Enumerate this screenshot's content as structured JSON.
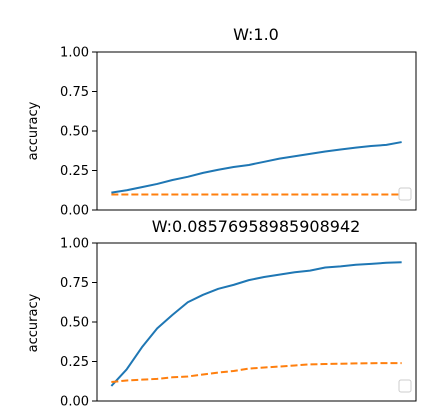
{
  "chart_data": [
    {
      "type": "line",
      "title": "W:1.0",
      "xlabel": "",
      "ylabel": "accuracy",
      "ylim": [
        0,
        1
      ],
      "yticks": [
        "0.00",
        "0.25",
        "0.50",
        "0.75",
        "1.00"
      ],
      "x": [
        0,
        1,
        2,
        3,
        4,
        5,
        6,
        7,
        8,
        9,
        10,
        11,
        12,
        13,
        14,
        15,
        16,
        17,
        18,
        19
      ],
      "series": [
        {
          "color": "#1f77b4",
          "style": "solid",
          "values": [
            0.11,
            0.125,
            0.145,
            0.165,
            0.19,
            0.21,
            0.235,
            0.255,
            0.272,
            0.285,
            0.305,
            0.325,
            0.34,
            0.355,
            0.37,
            0.383,
            0.395,
            0.405,
            0.412,
            0.43
          ]
        },
        {
          "color": "#ff7f0e",
          "style": "dashed",
          "values": [
            0.098,
            0.098,
            0.098,
            0.098,
            0.098,
            0.098,
            0.098,
            0.098,
            0.098,
            0.098,
            0.098,
            0.098,
            0.098,
            0.098,
            0.098,
            0.098,
            0.098,
            0.098,
            0.098,
            0.098
          ]
        }
      ],
      "legend": "bottom-right",
      "grid": false
    },
    {
      "type": "line",
      "title": "W:0.08576958985908942",
      "xlabel": "",
      "ylabel": "accuracy",
      "ylim": [
        0,
        1
      ],
      "yticks": [
        "0.00",
        "0.25",
        "0.50",
        "0.75",
        "1.00"
      ],
      "x": [
        0,
        1,
        2,
        3,
        4,
        5,
        6,
        7,
        8,
        9,
        10,
        11,
        12,
        13,
        14,
        15,
        16,
        17,
        18,
        19
      ],
      "series": [
        {
          "color": "#1f77b4",
          "style": "solid",
          "values": [
            0.095,
            0.2,
            0.34,
            0.46,
            0.545,
            0.625,
            0.672,
            0.71,
            0.735,
            0.765,
            0.785,
            0.8,
            0.815,
            0.825,
            0.845,
            0.852,
            0.862,
            0.868,
            0.875,
            0.878
          ]
        },
        {
          "color": "#ff7f0e",
          "style": "dashed",
          "values": [
            0.12,
            0.13,
            0.135,
            0.14,
            0.15,
            0.155,
            0.168,
            0.18,
            0.19,
            0.205,
            0.212,
            0.218,
            0.225,
            0.232,
            0.234,
            0.236,
            0.238,
            0.239,
            0.24,
            0.24
          ]
        }
      ],
      "legend": "bottom-right",
      "grid": false
    }
  ]
}
